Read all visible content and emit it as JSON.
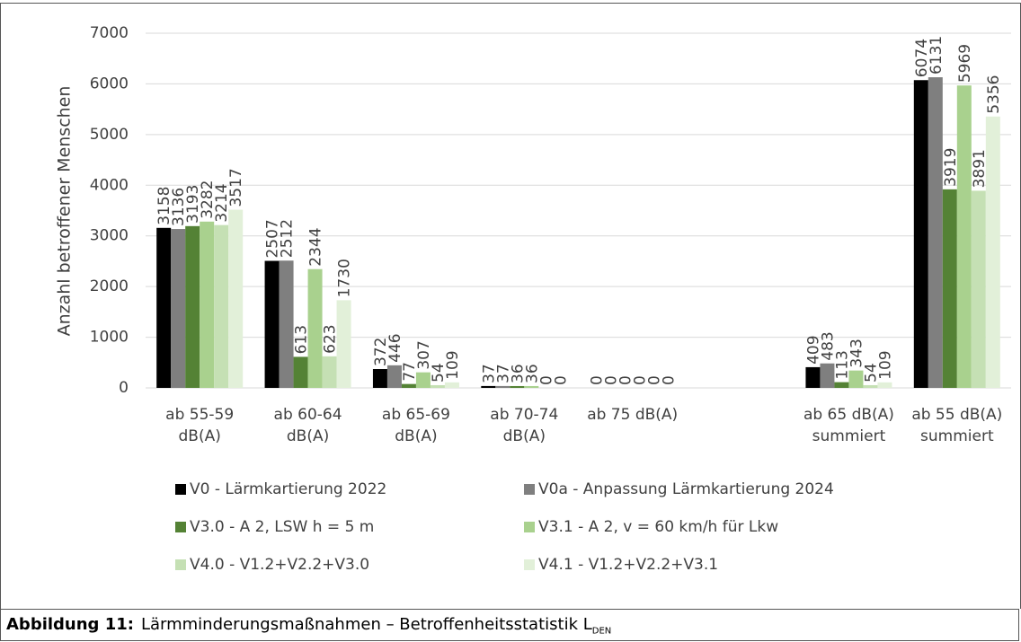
{
  "chart_data": {
    "type": "bar",
    "y_label": "Anzahl betroffener Menschen",
    "categories": [
      "ab 55-59 dB(A)",
      "ab 60-64 dB(A)",
      "ab 65-69 dB(A)",
      "ab 70-74 dB(A)",
      "ab 75 dB(A)",
      null,
      "ab 65 dB(A) summiert",
      "ab 55 dB(A) summiert"
    ],
    "series": [
      {
        "name": "V0 - Lärmkartierung 2022",
        "color": "#000000",
        "values": [
          3158,
          2507,
          372,
          37,
          0,
          null,
          409,
          6074
        ]
      },
      {
        "name": "V0a - Anpassung Lärmkartierung 2024",
        "color": "#7f7f7f",
        "values": [
          3136,
          2512,
          446,
          37,
          0,
          null,
          483,
          6131
        ]
      },
      {
        "name": "V3.0 - A 2, LSW h = 5 m",
        "color": "#548235",
        "values": [
          3193,
          613,
          77,
          36,
          0,
          null,
          113,
          3919
        ]
      },
      {
        "name": "V3.1 - A 2, v = 60 km/h für Lkw",
        "color": "#a9d18e",
        "values": [
          3282,
          2344,
          307,
          36,
          0,
          null,
          343,
          5969
        ]
      },
      {
        "name": "V4.0 - V1.2+V2.2+V3.0",
        "color": "#c5e0b4",
        "values": [
          3214,
          623,
          54,
          0,
          0,
          null,
          54,
          3891
        ]
      },
      {
        "name": "V4.1 - V1.2+V2.2+V3.1",
        "color": "#e2f0d9",
        "values": [
          3517,
          1730,
          109,
          0,
          0,
          null,
          109,
          5356
        ]
      }
    ],
    "ylim": [
      0,
      7000
    ],
    "yticks": [
      0,
      1000,
      2000,
      3000,
      4000,
      5000,
      6000,
      7000
    ],
    "grid": true,
    "legend": "bottom",
    "caption": {
      "label": "Abbildung 11:",
      "text": "Lärmminderungsmaßnahmen – Betroffenheitsstatistik L",
      "subscript": "DEN"
    }
  }
}
